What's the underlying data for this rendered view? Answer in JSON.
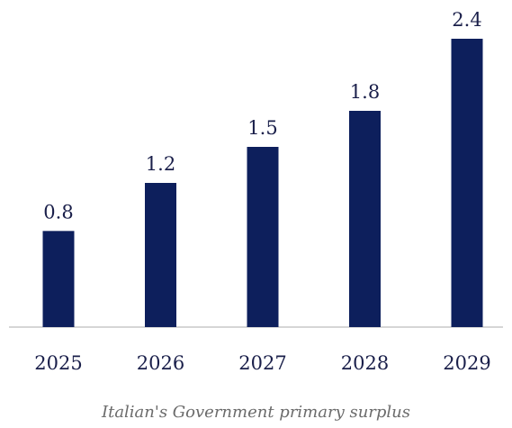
{
  "chart_data": {
    "type": "bar",
    "categories": [
      "2025",
      "2026",
      "2027",
      "2028",
      "2029"
    ],
    "values": [
      0.8,
      1.2,
      1.5,
      1.8,
      2.4
    ],
    "data_labels": [
      "0.8",
      "1.2",
      "1.5",
      "1.8",
      "2.4"
    ],
    "title": "",
    "caption": "Italian's Government primary surplus",
    "xlabel": "",
    "ylabel": "",
    "ylim": [
      0,
      2.4
    ],
    "grid": false,
    "legend": "none",
    "bar_color": "#0d1f5c",
    "axis_color": "#c8c8c8"
  }
}
